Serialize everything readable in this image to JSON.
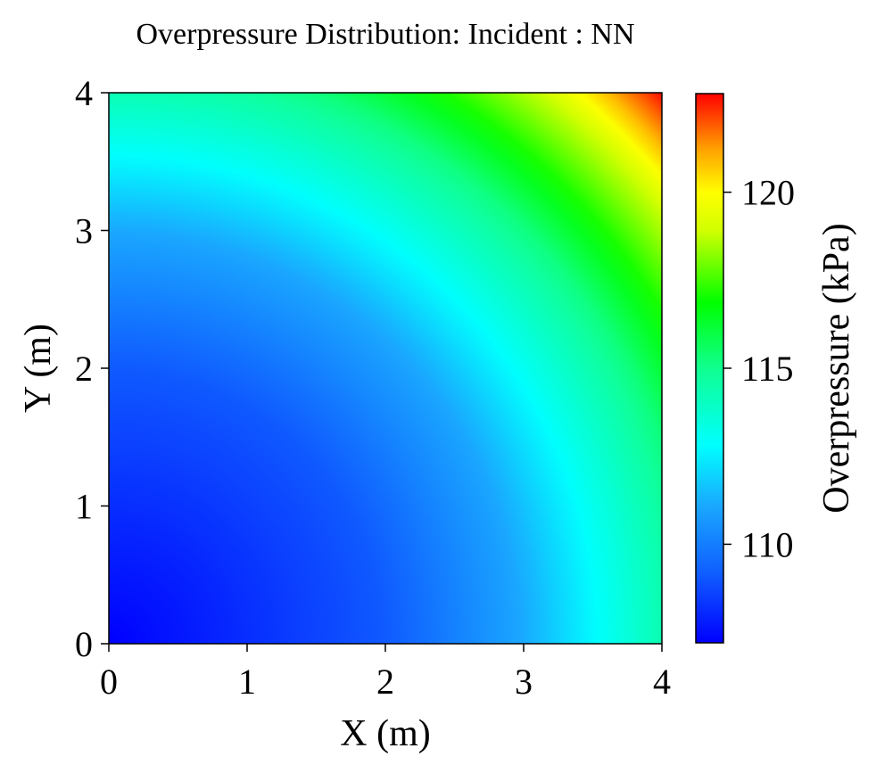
{
  "chart_data": {
    "type": "heatmap",
    "title": "Overpressure Distribution: Incident : NN",
    "xlabel": "X (m)",
    "ylabel": "Y (m)",
    "xlim": [
      0,
      4
    ],
    "ylim": [
      0,
      4
    ],
    "x_ticks": [
      "0",
      "1",
      "2",
      "3",
      "4"
    ],
    "y_ticks": [
      "0",
      "1",
      "2",
      "3",
      "4"
    ],
    "colorbar": {
      "label": "Overpressure (kPa)",
      "range": [
        107.2,
        122.8
      ],
      "ticks": [
        "110",
        "115",
        "120"
      ],
      "tick_values": [
        110,
        115,
        120
      ],
      "colormap": "jet-like: blue-cyan-green-yellow-red"
    },
    "field": {
      "description_of_values": "radial from origin",
      "samples": [
        {
          "r": 0.0,
          "value": 107.2
        },
        {
          "r": 2.0,
          "value": 109.1
        },
        {
          "r": 3.0,
          "value": 111.1
        },
        {
          "r": 4.2,
          "value": 115.0
        },
        {
          "r": 5.1,
          "value": 119.0
        },
        {
          "r": 5.66,
          "value": 122.8
        }
      ]
    },
    "grid": false,
    "colors": {
      "low": "#0000ff",
      "mid_low": "#00ffff",
      "mid": "#00ff00",
      "mid_high": "#ffff00",
      "high": "#ff0000"
    }
  }
}
